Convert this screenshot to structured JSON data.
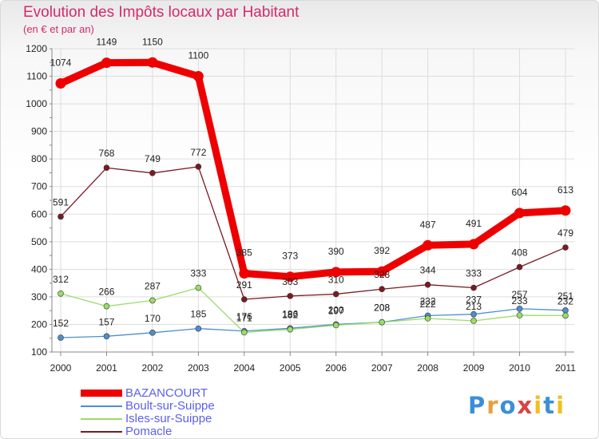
{
  "header": {
    "title": "Evolution des Impôts locaux par Habitant",
    "subtitle": "(en € et par an)"
  },
  "logo": {
    "text": "Proxiti",
    "colors": [
      "#3b8fd8",
      "#e8a13a",
      "#3b8fd8",
      "#d84444",
      "#f0c020",
      "#3b8fd8",
      "#f0c020"
    ]
  },
  "chart_data": {
    "type": "line",
    "categories": [
      "2000",
      "2001",
      "2002",
      "2003",
      "2004",
      "2005",
      "2006",
      "2007",
      "2008",
      "2009",
      "2010",
      "2011"
    ],
    "ylim": [
      100,
      1200
    ],
    "yticks": [
      100,
      200,
      300,
      400,
      500,
      600,
      700,
      800,
      900,
      1000,
      1100,
      1200
    ],
    "grid": true,
    "legend_position": "bottom-left",
    "series": [
      {
        "name": "BAZANCOURT",
        "color": "#ee0000",
        "values": [
          1074,
          1149,
          1150,
          1100,
          385,
          373,
          390,
          392,
          487,
          491,
          604,
          613
        ]
      },
      {
        "name": "Boult-sur-Suippe",
        "color": "#4d8fcc",
        "values": [
          152,
          157,
          170,
          185,
          176,
          186,
          200,
          208,
          232,
          237,
          257,
          251
        ]
      },
      {
        "name": "Isles-sur-Suippe",
        "color": "#99dd66",
        "values": [
          312,
          266,
          287,
          333,
          171,
          182,
          197,
          208,
          222,
          213,
          233,
          232
        ]
      },
      {
        "name": "Pomacle",
        "color": "#7a1a22",
        "values": [
          591,
          768,
          749,
          772,
          291,
          303,
          310,
          328,
          344,
          333,
          408,
          479
        ]
      }
    ]
  }
}
